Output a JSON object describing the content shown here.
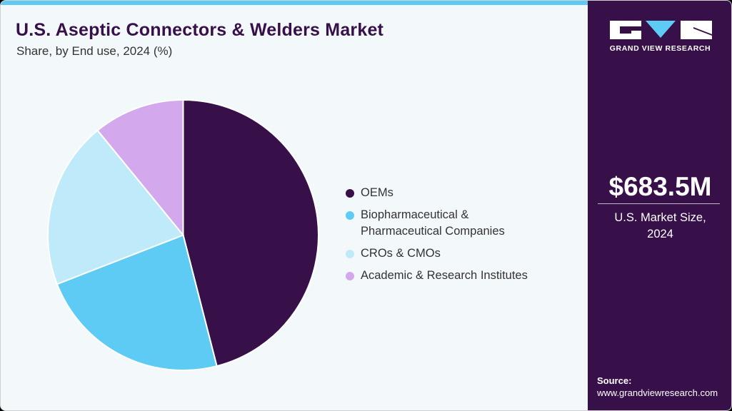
{
  "header": {
    "title": "U.S. Aseptic Connectors & Welders Market",
    "subtitle": "Share, by End use, 2024 (%)"
  },
  "colors": {
    "accent_bar": "#5ecbf5",
    "side_panel": "#37104a",
    "background": "#f3f8fb"
  },
  "chart_data": {
    "type": "pie",
    "title": "U.S. Aseptic Connectors & Welders Market",
    "subtitle": "Share, by End use, 2024 (%)",
    "categories": [
      "OEMs",
      "Biopharmaceutical & Pharmaceutical Companies",
      "CROs & CMOs",
      "Academic & Research Institutes"
    ],
    "values": [
      46.0,
      23.1,
      20.0,
      10.9
    ],
    "colors": [
      "#37104a",
      "#5ecbf5",
      "#bfeaf9",
      "#d4a8ec"
    ],
    "start_angle": "12 o'clock, clockwise",
    "legend_position": "right"
  },
  "legend": {
    "items": [
      {
        "label_line1": "OEMs",
        "label_line2": "",
        "color": "#37104a"
      },
      {
        "label_line1": "Biopharmaceutical &",
        "label_line2": "Pharmaceutical Companies",
        "color": "#5ecbf5"
      },
      {
        "label_line1": "CROs & CMOs",
        "label_line2": "",
        "color": "#bfeaf9"
      },
      {
        "label_line1": "Academic & Research Institutes",
        "label_line2": "",
        "color": "#d4a8ec"
      }
    ]
  },
  "sidebar": {
    "logo_text": "GRAND VIEW RESEARCH",
    "market_value": "$683.5M",
    "market_label_line1": "U.S. Market Size,",
    "market_label_line2": "2024",
    "source_label": "Source:",
    "source_url": "www.grandviewresearch.com"
  }
}
